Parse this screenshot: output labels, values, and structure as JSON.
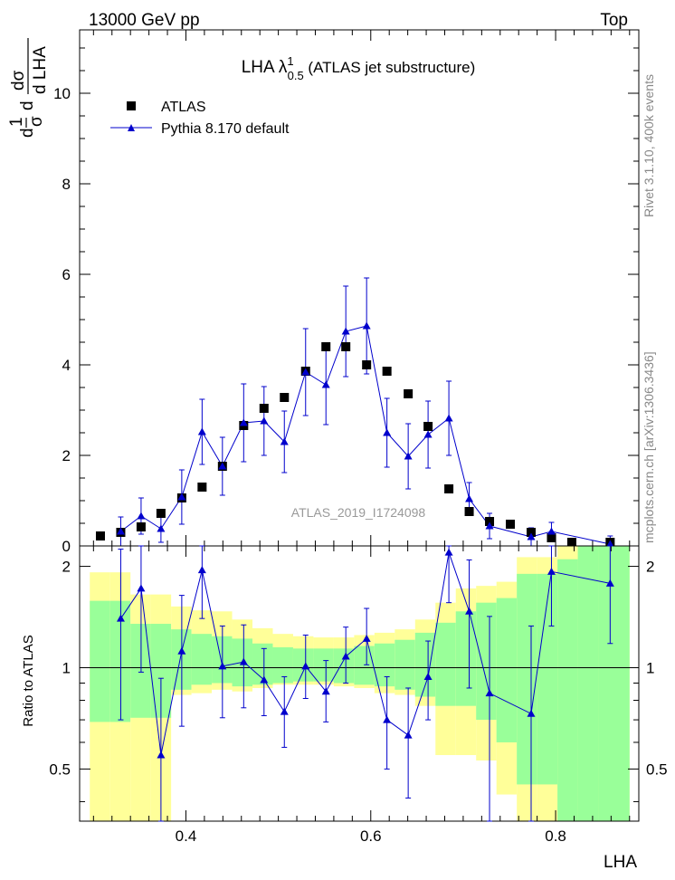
{
  "header": {
    "left": "13000 GeV pp",
    "right": "Top"
  },
  "side": {
    "rivet": "Rivet 3.1.10,  400k events",
    "mcplots": "mcplots.cern.ch [arXiv:1306.3436]"
  },
  "watermark": "ATLAS_2019_I1724098",
  "colors": {
    "data": "#000000",
    "mc": "#0000cc",
    "band_outer": "#ffff99",
    "band_inner": "#99ff99"
  },
  "chart_data": [
    {
      "type": "scatter",
      "title": "LHA λ0.51 (ATLAS jet substructure)",
      "title_parts": {
        "prefix": "LHA ",
        "symbol": "λ",
        "sup": "1",
        "sub": "0.5",
        "suffix": " (ATLAS jet substructure)"
      },
      "ylabel": "1/σ dσ/d LHA",
      "xlim": [
        0.285,
        0.89
      ],
      "ylim": [
        0,
        11.4
      ],
      "yticks": [
        0,
        2,
        4,
        6,
        8,
        10
      ],
      "legend": {
        "placement": "top-left",
        "entries": [
          "ATLAS",
          "Pythia 8.170 default"
        ]
      },
      "x": [
        0.3075,
        0.3295,
        0.3515,
        0.373,
        0.3955,
        0.4175,
        0.4395,
        0.4625,
        0.4845,
        0.5065,
        0.5295,
        0.5515,
        0.573,
        0.5955,
        0.6175,
        0.6405,
        0.662,
        0.6845,
        0.7065,
        0.7285,
        0.751,
        0.7735,
        0.7955,
        0.8175,
        0.859
      ],
      "series": [
        {
          "name": "ATLAS",
          "marker": "square",
          "values": [
            0.22,
            0.3,
            0.42,
            0.72,
            1.06,
            1.3,
            1.76,
            2.66,
            3.04,
            3.28,
            3.86,
            4.4,
            4.4,
            4.0,
            3.86,
            3.36,
            2.64,
            1.26,
            0.76,
            0.54,
            0.48,
            0.3,
            0.18,
            0.08,
            0.08
          ]
        },
        {
          "name": "Pythia 8.170 default",
          "marker": "triangle",
          "x": [
            0.3295,
            0.3515,
            0.373,
            0.3955,
            0.4175,
            0.4395,
            0.4625,
            0.4845,
            0.5065,
            0.5295,
            0.5515,
            0.573,
            0.5955,
            0.6175,
            0.6405,
            0.662,
            0.6845,
            0.7065,
            0.7285,
            0.7735,
            0.7955,
            0.859
          ],
          "values": [
            0.32,
            0.66,
            0.38,
            1.08,
            2.52,
            1.76,
            2.72,
            2.76,
            2.3,
            3.84,
            3.56,
            4.74,
            4.86,
            2.5,
            1.98,
            2.46,
            2.82,
            1.04,
            0.44,
            0.2,
            0.32,
            0.04
          ],
          "err": [
            0.32,
            0.4,
            0.3,
            0.6,
            0.72,
            0.64,
            0.86,
            0.76,
            0.68,
            0.96,
            0.88,
            1.0,
            1.06,
            0.76,
            0.72,
            0.74,
            0.82,
            0.36,
            0.28,
            0.2,
            0.2,
            0.18
          ]
        }
      ]
    },
    {
      "type": "scatter",
      "xlabel": "LHA",
      "ylabel": "Ratio to ATLAS",
      "xlim": [
        0.285,
        0.89
      ],
      "ylim": [
        0.35,
        2.3
      ],
      "yticks": [
        0.5,
        1,
        2
      ],
      "xticks": [
        0.4,
        0.6,
        0.8
      ],
      "reference_line": 1,
      "bands": {
        "edges": [
          0.296,
          0.318,
          0.34,
          0.362,
          0.384,
          0.406,
          0.428,
          0.45,
          0.472,
          0.494,
          0.516,
          0.538,
          0.56,
          0.582,
          0.604,
          0.626,
          0.648,
          0.67,
          0.692,
          0.714,
          0.736,
          0.758,
          0.78,
          0.802,
          0.824,
          0.846,
          0.88
        ],
        "outer_lo": [
          0.3,
          0.3,
          0.3,
          0.3,
          0.83,
          0.84,
          0.86,
          0.85,
          0.87,
          0.89,
          0.89,
          0.89,
          0.88,
          0.87,
          0.84,
          0.83,
          0.77,
          0.55,
          0.55,
          0.53,
          0.42,
          0.2,
          0.2,
          0.2,
          0.2,
          0.2
        ],
        "outer_hi": [
          1.92,
          1.92,
          1.65,
          1.65,
          1.52,
          1.48,
          1.47,
          1.39,
          1.31,
          1.26,
          1.24,
          1.23,
          1.23,
          1.25,
          1.27,
          1.3,
          1.39,
          1.56,
          1.72,
          1.75,
          1.8,
          2.13,
          2.13,
          2.3,
          2.3,
          2.3
        ],
        "inner_lo": [
          0.69,
          0.69,
          0.71,
          0.71,
          0.86,
          0.89,
          0.9,
          0.88,
          0.89,
          0.9,
          0.91,
          0.91,
          0.9,
          0.89,
          0.88,
          0.86,
          0.82,
          0.77,
          0.77,
          0.7,
          0.6,
          0.45,
          0.45,
          0.25,
          0.2,
          0.2
        ],
        "inner_hi": [
          1.58,
          1.58,
          1.35,
          1.35,
          1.3,
          1.26,
          1.24,
          1.22,
          1.18,
          1.15,
          1.14,
          1.14,
          1.14,
          1.16,
          1.18,
          1.21,
          1.27,
          1.36,
          1.47,
          1.56,
          1.61,
          1.9,
          1.9,
          2.1,
          2.3,
          2.3
        ]
      },
      "x": [
        0.3295,
        0.3515,
        0.373,
        0.3955,
        0.4175,
        0.4395,
        0.4625,
        0.4845,
        0.5065,
        0.5295,
        0.5515,
        0.573,
        0.5955,
        0.6175,
        0.6405,
        0.662,
        0.6845,
        0.7065,
        0.7285,
        0.7735,
        0.7955,
        0.859
      ],
      "series": [
        {
          "name": "Pythia 8.170 default",
          "marker": "triangle",
          "values": [
            1.4,
            1.72,
            0.55,
            1.12,
            1.95,
            1.01,
            1.04,
            0.92,
            0.74,
            1.01,
            0.85,
            1.08,
            1.22,
            0.7,
            0.63,
            0.94,
            2.2,
            1.47,
            0.84,
            0.73,
            1.93,
            1.78
          ],
          "err_lo": [
            0.7,
            0.75,
            0.35,
            0.45,
            0.55,
            0.3,
            0.28,
            0.2,
            0.16,
            0.2,
            0.16,
            0.18,
            0.2,
            0.2,
            0.22,
            0.24,
            0.64,
            0.6,
            0.5,
            0.42,
            0.6,
            0.6
          ],
          "err_hi": [
            0.85,
            0.8,
            0.38,
            0.52,
            0.6,
            0.32,
            0.3,
            0.22,
            0.2,
            0.24,
            0.2,
            0.24,
            0.28,
            0.24,
            0.24,
            0.26,
            0.7,
            0.62,
            0.58,
            0.6,
            0.62,
            0.62
          ]
        }
      ]
    }
  ]
}
